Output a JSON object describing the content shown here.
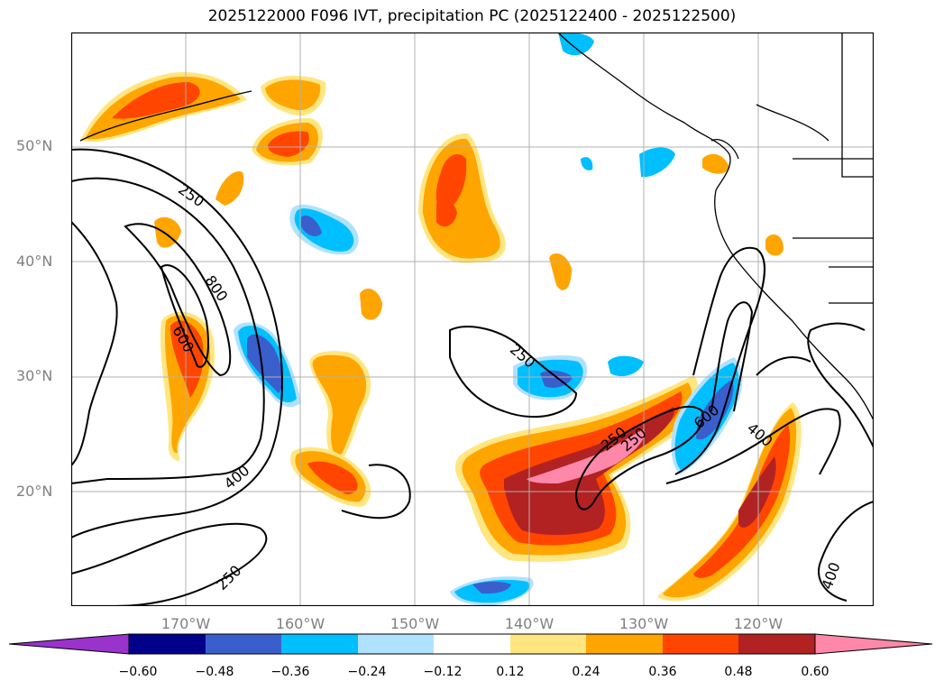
{
  "title": "2025122000 F096 IVT, precipitation PC (2025122400 - 2025122500)",
  "lat_labels": [
    "50°N",
    "40°N",
    "30°N",
    "20°N"
  ],
  "lon_labels": [
    "170°W",
    "160°W",
    "150°W",
    "140°W",
    "130°W",
    "120°W"
  ],
  "contour_labels": [
    "250",
    "800",
    "600",
    "250",
    "250",
    "400",
    "250",
    "600",
    "400",
    "250",
    "400"
  ],
  "colorbar": {
    "ticks": [
      "−0.60",
      "−0.48",
      "−0.36",
      "−0.24",
      "−0.12",
      "0.12",
      "0.24",
      "0.36",
      "0.48",
      "0.60"
    ],
    "colors": [
      "#9933cc",
      "#00008b",
      "#3a5fcd",
      "#00bfff",
      "#b0e2ff",
      "#ffffff",
      "#ffe680",
      "#ffa500",
      "#ff4500",
      "#b22222",
      "#ff88aa",
      "#ff88aa"
    ]
  }
}
